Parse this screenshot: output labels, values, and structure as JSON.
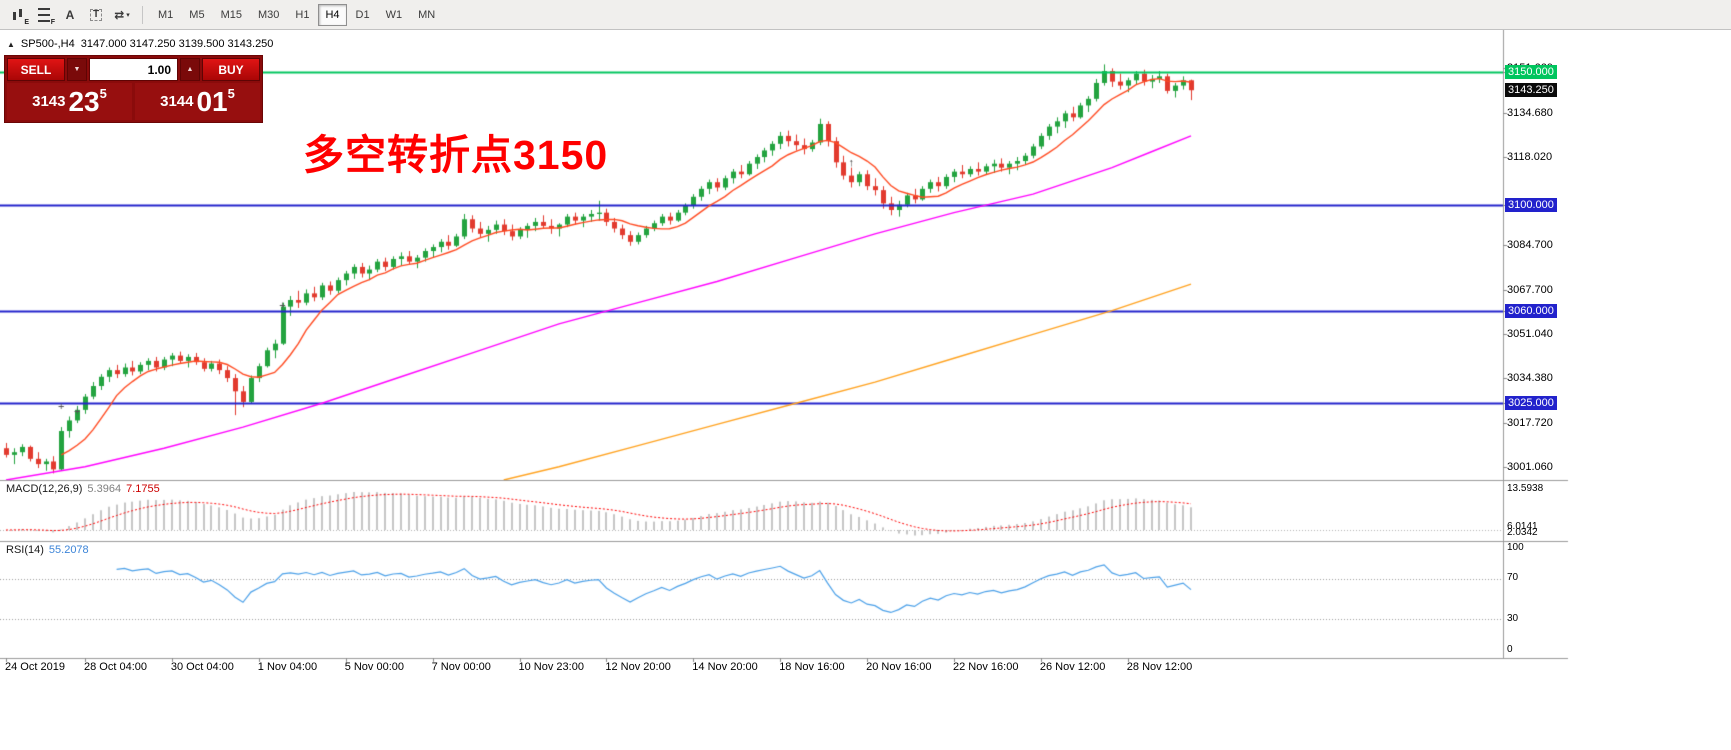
{
  "toolbar": {
    "icons": [
      {
        "name": "chart-objects-icon",
        "type": "candles",
        "badge": "E"
      },
      {
        "name": "indicator-list-icon",
        "type": "lines",
        "badge": "F"
      },
      {
        "name": "cursor-tool-icon",
        "glyph": "A"
      },
      {
        "name": "text-tool-icon",
        "glyph": "T",
        "boxed": true
      },
      {
        "name": "tools-dropdown-icon",
        "glyph": "⇄",
        "caret": "▾"
      }
    ],
    "timeframes": [
      "M1",
      "M5",
      "M15",
      "M30",
      "H1",
      "H4",
      "D1",
      "W1",
      "MN"
    ],
    "active_timeframe": "H4"
  },
  "chart": {
    "collapse_icon": "▲",
    "symbol": "SP500-,H4",
    "ohlc": "3147.000 3147.250 3139.500 3143.250"
  },
  "trade_panel": {
    "sell_label": "SELL",
    "buy_label": "BUY",
    "volume": "1.00",
    "spin_down": "▼",
    "spin_up": "▲",
    "bid": {
      "prefix": "3143",
      "big": "23",
      "sup": "5"
    },
    "ask": {
      "prefix": "3144",
      "big": "01",
      "sup": "5"
    }
  },
  "annotation": {
    "text": "多空转折点3150",
    "color": "#ff0000"
  },
  "price_axis": {
    "ticks": [
      {
        "label": "3151.660",
        "price": 3151.66
      },
      {
        "label": "3134.680",
        "price": 3134.68
      },
      {
        "label": "3118.020",
        "price": 3118.02
      },
      {
        "label": "3084.700",
        "price": 3084.7
      },
      {
        "label": "3067.700",
        "price": 3067.7
      },
      {
        "label": "3051.040",
        "price": 3051.04
      },
      {
        "label": "3034.380",
        "price": 3034.38
      },
      {
        "label": "3017.720",
        "price": 3017.72
      },
      {
        "label": "3001.060",
        "price": 3001.06
      }
    ],
    "current": {
      "label": "3143.250",
      "price": 3143.25,
      "bg": "#0a0a0a",
      "fg": "#ffffff"
    }
  },
  "time_axis": {
    "labels": [
      {
        "text": "24 Oct 2019",
        "i": 0
      },
      {
        "text": "28 Oct 04:00",
        "i": 10
      },
      {
        "text": "30 Oct 04:00",
        "i": 21
      },
      {
        "text": "1 Nov 04:00",
        "i": 32
      },
      {
        "text": "5 Nov 00:00",
        "i": 43
      },
      {
        "text": "7 Nov 00:00",
        "i": 54
      },
      {
        "text": "10 Nov 23:00",
        "i": 65
      },
      {
        "text": "12 Nov 20:00",
        "i": 76
      },
      {
        "text": "14 Nov 20:00",
        "i": 87
      },
      {
        "text": "18 Nov 16:00",
        "i": 98
      },
      {
        "text": "20 Nov 16:00",
        "i": 109
      },
      {
        "text": "22 Nov 16:00",
        "i": 120
      },
      {
        "text": "26 Nov 12:00",
        "i": 131
      },
      {
        "text": "28 Nov 12:00",
        "i": 142
      }
    ]
  },
  "macd": {
    "name": "MACD(12,26,9)",
    "main_value": "5.3964",
    "signal_value": "7.1755",
    "scale": [
      "13.5938",
      "6.0141",
      "2.0342"
    ],
    "bar_color": "#c6c6c6",
    "signal_color": "#ff0000"
  },
  "rsi": {
    "name": "RSI(14)",
    "value": "55.2078",
    "scale": [
      "100",
      "70",
      "30",
      "0"
    ],
    "levels": [
      70,
      30
    ],
    "line_color": "#4ba0e8"
  },
  "chart_data": {
    "type": "candlestick",
    "symbol": "SP500-",
    "timeframe": "H4",
    "ylim": [
      2996,
      3166
    ],
    "up_color": "#23a33f",
    "down_color": "#e23a2e",
    "hlines": [
      {
        "price": 3150,
        "color": "#00c55e",
        "label": "3150.000",
        "width": 2
      },
      {
        "price": 3100,
        "color": "#2222cc",
        "label": "3100.000",
        "width": 2
      },
      {
        "price": 3060,
        "color": "#2222cc",
        "label": "3060.000",
        "width": 2
      },
      {
        "price": 3025,
        "color": "#2222cc",
        "label": "3025.000",
        "width": 2
      }
    ],
    "overlays": {
      "ma_fast": {
        "type": "sma",
        "period": 8,
        "color": "#ff4a21"
      },
      "ma_mid": {
        "color": "#ff00ff",
        "points": [
          [
            0,
            2996
          ],
          [
            10,
            3001
          ],
          [
            20,
            3008
          ],
          [
            30,
            3016
          ],
          [
            40,
            3025
          ],
          [
            50,
            3035
          ],
          [
            60,
            3045
          ],
          [
            70,
            3055
          ],
          [
            80,
            3063
          ],
          [
            90,
            3071
          ],
          [
            100,
            3080
          ],
          [
            110,
            3089
          ],
          [
            120,
            3097
          ],
          [
            130,
            3104
          ],
          [
            135,
            3109
          ],
          [
            140,
            3114
          ],
          [
            145,
            3120
          ],
          [
            150,
            3126
          ]
        ]
      },
      "ma_slow": {
        "color": "#ffa21f",
        "points": [
          [
            63,
            2996
          ],
          [
            70,
            3001
          ],
          [
            80,
            3009
          ],
          [
            90,
            3017
          ],
          [
            100,
            3025
          ],
          [
            110,
            3033
          ],
          [
            120,
            3042
          ],
          [
            130,
            3051
          ],
          [
            140,
            3060
          ],
          [
            150,
            3070
          ]
        ]
      }
    },
    "markers": [
      {
        "glyph": "+",
        "i": 7,
        "price": 3024
      },
      {
        "glyph": "+",
        "i": 9,
        "price": 3022
      },
      {
        "glyph": "+",
        "i": 35,
        "price": 3062
      },
      {
        "glyph": "↑",
        "i": 107,
        "price": 3116
      }
    ],
    "candles": [
      [
        3008,
        3010,
        3004.5,
        3005.5
      ],
      [
        3005.5,
        3008,
        3002,
        3006.5
      ],
      [
        3006.5,
        3009.5,
        3005,
        3008.5
      ],
      [
        3008.5,
        3009,
        3003,
        3004
      ],
      [
        3004,
        3006.5,
        3000.5,
        3002
      ],
      [
        3002,
        3004,
        2999.5,
        3003
      ],
      [
        3003,
        3005,
        2998.5,
        3000
      ],
      [
        3000,
        3016,
        2999.5,
        3014.5
      ],
      [
        3014.5,
        3020,
        3012,
        3018.5
      ],
      [
        3018.5,
        3024,
        3017.5,
        3022.5
      ],
      [
        3022.5,
        3028.5,
        3021,
        3027.5
      ],
      [
        3027.5,
        3033,
        3026.5,
        3031.5
      ],
      [
        3031.5,
        3036,
        3030,
        3035
      ],
      [
        3035,
        3038.5,
        3033,
        3037.5
      ],
      [
        3037.5,
        3039.5,
        3034.5,
        3036
      ],
      [
        3036,
        3040,
        3035,
        3038.5
      ],
      [
        3038.5,
        3041,
        3035.5,
        3037
      ],
      [
        3037,
        3040.5,
        3036,
        3039.5
      ],
      [
        3039.5,
        3042,
        3037.5,
        3041
      ],
      [
        3041,
        3042.5,
        3037,
        3038.5
      ],
      [
        3038.5,
        3042.5,
        3037.5,
        3041.5
      ],
      [
        3041.5,
        3044,
        3039,
        3043
      ],
      [
        3043,
        3044.5,
        3040,
        3041
      ],
      [
        3041,
        3043.5,
        3038.5,
        3042.5
      ],
      [
        3042.5,
        3044,
        3039.5,
        3040.5
      ],
      [
        3040.5,
        3042,
        3037,
        3038
      ],
      [
        3038,
        3041,
        3037,
        3040
      ],
      [
        3040,
        3041.5,
        3036,
        3037.5
      ],
      [
        3037.5,
        3039,
        3033,
        3034.5
      ],
      [
        3034.5,
        3036,
        3020.5,
        3029.5
      ],
      [
        3029.5,
        3031.5,
        3023.5,
        3025.5
      ],
      [
        3025.5,
        3035.5,
        3025,
        3034.5
      ],
      [
        3034.5,
        3040,
        3033,
        3039
      ],
      [
        3039,
        3046,
        3038.5,
        3045
      ],
      [
        3045,
        3049,
        3042,
        3047.5
      ],
      [
        3047.5,
        3063,
        3047,
        3061.5
      ],
      [
        3061.5,
        3065.5,
        3058,
        3064
      ],
      [
        3064,
        3067.5,
        3061,
        3063
      ],
      [
        3063,
        3068,
        3062,
        3066.5
      ],
      [
        3066.5,
        3069,
        3063.5,
        3065
      ],
      [
        3065,
        3070.5,
        3064,
        3069.5
      ],
      [
        3069.5,
        3071,
        3066,
        3067.5
      ],
      [
        3067.5,
        3072.5,
        3066.5,
        3071.5
      ],
      [
        3071.5,
        3075,
        3069.5,
        3074
      ],
      [
        3074,
        3077.5,
        3072,
        3076.5
      ],
      [
        3076.5,
        3078,
        3072.5,
        3074
      ],
      [
        3074,
        3077,
        3071.5,
        3075.5
      ],
      [
        3075.5,
        3079.5,
        3074.5,
        3078.5
      ],
      [
        3078.5,
        3080,
        3075,
        3076.5
      ],
      [
        3076.5,
        3080.5,
        3075.5,
        3079.5
      ],
      [
        3079.5,
        3082,
        3077,
        3080.5
      ],
      [
        3080.5,
        3082.5,
        3077.5,
        3078.5
      ],
      [
        3078.5,
        3081,
        3076,
        3080
      ],
      [
        3080,
        3083.5,
        3078.5,
        3082.5
      ],
      [
        3082.5,
        3085,
        3080,
        3084
      ],
      [
        3084,
        3087,
        3082,
        3086
      ],
      [
        3086,
        3088.5,
        3083,
        3084.5
      ],
      [
        3084.5,
        3089,
        3084,
        3088
      ],
      [
        3088,
        3096.5,
        3087,
        3094.5
      ],
      [
        3094.5,
        3096,
        3089.5,
        3091
      ],
      [
        3091,
        3093.5,
        3087.5,
        3089
      ],
      [
        3089,
        3092,
        3086,
        3090.5
      ],
      [
        3090.5,
        3094,
        3089,
        3092.5
      ],
      [
        3092.5,
        3094.5,
        3088.5,
        3090
      ],
      [
        3090,
        3092.5,
        3086.5,
        3088
      ],
      [
        3088,
        3091.5,
        3087,
        3090.5
      ],
      [
        3090.5,
        3093,
        3087.5,
        3092
      ],
      [
        3092,
        3095,
        3090,
        3093.5
      ],
      [
        3093.5,
        3096,
        3091,
        3092
      ],
      [
        3092,
        3094.5,
        3089,
        3091
      ],
      [
        3091,
        3093,
        3088,
        3092.5
      ],
      [
        3092.5,
        3096.5,
        3091.5,
        3095.5
      ],
      [
        3095.5,
        3097,
        3092.5,
        3094
      ],
      [
        3094,
        3096.5,
        3091.5,
        3095.5
      ],
      [
        3095.5,
        3098,
        3093.5,
        3096.5
      ],
      [
        3096.5,
        3101.5,
        3094,
        3097
      ],
      [
        3097,
        3098.5,
        3092,
        3093.5
      ],
      [
        3093.5,
        3095,
        3089.5,
        3091
      ],
      [
        3091,
        3092.5,
        3087,
        3088.5
      ],
      [
        3088.5,
        3090,
        3084.5,
        3086
      ],
      [
        3086,
        3089.5,
        3085,
        3088.5
      ],
      [
        3088.5,
        3092,
        3087.5,
        3091
      ],
      [
        3091,
        3094,
        3090,
        3093
      ],
      [
        3093,
        3096.5,
        3092,
        3095.5
      ],
      [
        3095.5,
        3097,
        3092.5,
        3094
      ],
      [
        3094,
        3098,
        3093.5,
        3097
      ],
      [
        3097,
        3100.5,
        3096,
        3099.5
      ],
      [
        3099.5,
        3104,
        3098.5,
        3103
      ],
      [
        3103,
        3107,
        3101.5,
        3106
      ],
      [
        3106,
        3109.5,
        3104,
        3108.5
      ],
      [
        3108.5,
        3110,
        3105,
        3106.5
      ],
      [
        3106.5,
        3111,
        3105.5,
        3110
      ],
      [
        3110,
        3113.5,
        3108,
        3112.5
      ],
      [
        3112.5,
        3115,
        3110,
        3111.5
      ],
      [
        3111.5,
        3116.5,
        3111,
        3115.5
      ],
      [
        3115.5,
        3119,
        3113.5,
        3118
      ],
      [
        3118,
        3121.5,
        3116,
        3120.5
      ],
      [
        3120.5,
        3124,
        3118.5,
        3123
      ],
      [
        3123,
        3127.5,
        3121,
        3126
      ],
      [
        3126,
        3128,
        3122,
        3124
      ],
      [
        3124,
        3126.5,
        3120.5,
        3122.5
      ],
      [
        3122.5,
        3125,
        3119,
        3121
      ],
      [
        3121,
        3124.5,
        3120,
        3123.5
      ],
      [
        3123.5,
        3132.5,
        3122.5,
        3130.5
      ],
      [
        3130.5,
        3131.5,
        3122,
        3124
      ],
      [
        3124,
        3125.5,
        3114,
        3116
      ],
      [
        3116,
        3118.5,
        3109.5,
        3111
      ],
      [
        3111,
        3114,
        3106.5,
        3108.5
      ],
      [
        3108.5,
        3112.5,
        3107,
        3111.5
      ],
      [
        3111.5,
        3113,
        3105.5,
        3107
      ],
      [
        3107,
        3110,
        3103.5,
        3105.5
      ],
      [
        3105.5,
        3107,
        3098.5,
        3100.5
      ],
      [
        3100.5,
        3103,
        3096,
        3098
      ],
      [
        3098,
        3101.5,
        3095.5,
        3100
      ],
      [
        3100,
        3104.5,
        3099,
        3103.5
      ],
      [
        3103.5,
        3106,
        3100.5,
        3102
      ],
      [
        3102,
        3107,
        3101.5,
        3106
      ],
      [
        3106,
        3109.5,
        3104.5,
        3108.5
      ],
      [
        3108.5,
        3110.5,
        3105,
        3107
      ],
      [
        3107,
        3111.5,
        3106,
        3110.5
      ],
      [
        3110.5,
        3113.5,
        3108.5,
        3112.5
      ],
      [
        3112.5,
        3115,
        3110,
        3111.5
      ],
      [
        3111.5,
        3114.5,
        3110.5,
        3113.5
      ],
      [
        3113.5,
        3116,
        3111,
        3112.5
      ],
      [
        3112.5,
        3115.5,
        3111.5,
        3114.5
      ],
      [
        3114.5,
        3117,
        3112,
        3115.5
      ],
      [
        3115.5,
        3117.5,
        3112.5,
        3114
      ],
      [
        3114,
        3116.5,
        3111.5,
        3115.5
      ],
      [
        3115.5,
        3118,
        3113,
        3116.5
      ],
      [
        3116.5,
        3119.5,
        3115,
        3118.5
      ],
      [
        3118.5,
        3123,
        3117.5,
        3122
      ],
      [
        3122,
        3127,
        3121,
        3126
      ],
      [
        3126,
        3130.5,
        3124.5,
        3129.5
      ],
      [
        3129.5,
        3133,
        3127,
        3131.5
      ],
      [
        3131.5,
        3135.5,
        3129,
        3134.5
      ],
      [
        3134.5,
        3137,
        3131.5,
        3133
      ],
      [
        3133,
        3138.5,
        3132.5,
        3137.5
      ],
      [
        3137.5,
        3141,
        3135,
        3140
      ],
      [
        3140,
        3147.5,
        3139,
        3146
      ],
      [
        3146,
        3153,
        3145,
        3150.5
      ],
      [
        3150.5,
        3151.5,
        3144.5,
        3146.5
      ],
      [
        3146.5,
        3149.5,
        3143.5,
        3145
      ],
      [
        3145,
        3148,
        3142.5,
        3147
      ],
      [
        3147,
        3150.5,
        3145.5,
        3149.5
      ],
      [
        3149.5,
        3151,
        3145,
        3146.5
      ],
      [
        3146.5,
        3149,
        3144,
        3147.5
      ],
      [
        3147.5,
        3150.5,
        3146,
        3148.5
      ],
      [
        3148.5,
        3149.5,
        3142,
        3143
      ],
      [
        3143,
        3146,
        3140.5,
        3145
      ],
      [
        3145,
        3148.5,
        3143.5,
        3147
      ],
      [
        3147,
        3147.25,
        3139.5,
        3143.25
      ]
    ]
  }
}
